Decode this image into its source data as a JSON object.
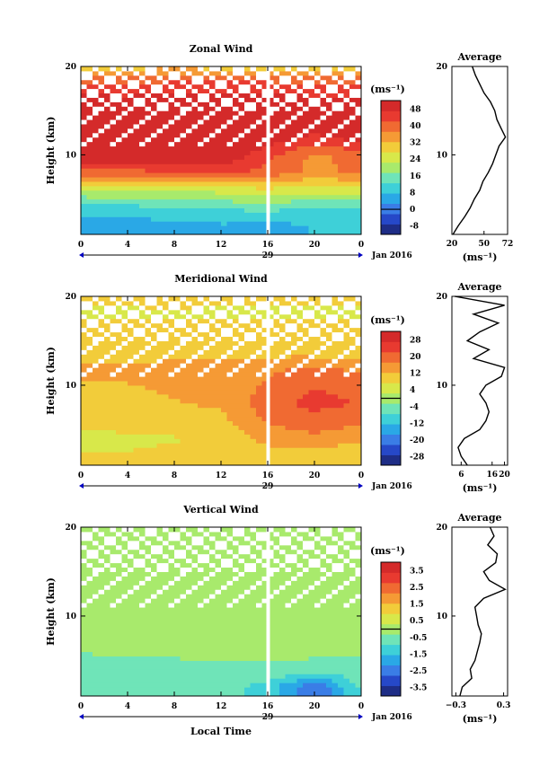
{
  "chart_data": [
    {
      "type": "heatmap",
      "title": "Zonal Wind",
      "ylabel": "Height (km)",
      "xlabel": "",
      "xlim": [
        0,
        24
      ],
      "ylim": [
        1,
        20
      ],
      "x_ticks": [
        "0",
        "4",
        "8",
        "12",
        "16",
        "20",
        "0"
      ],
      "y_ticks": [
        "10",
        "20"
      ],
      "date_axis": {
        "day_label": "29",
        "month_label": "Jan 2016"
      },
      "colorbar": {
        "unit_label": "(ms⁻¹)",
        "ticks": [
          "48",
          "40",
          "32",
          "24",
          "16",
          "8",
          "0",
          "-8"
        ],
        "range": [
          -12,
          52
        ],
        "colors": [
          "#1e2d86",
          "#2648c8",
          "#3a7de6",
          "#2aa8e6",
          "#3ed0d8",
          "#6fe4b8",
          "#a8ea6c",
          "#d8e84a",
          "#f2cc3a",
          "#f59a35",
          "#f06a32",
          "#e83a30",
          "#d42a2a"
        ]
      },
      "field": {
        "description": "Strong westerly jet (>48 m/s) between about 8 and 16 km, weak winds (0-16 m/s) near 1-4 km; data gaps (white) above ~12 km and a missing column near 16 LT.",
        "time_lt": [
          0,
          4,
          8,
          12,
          16,
          20,
          24
        ],
        "height_km": [
          2,
          4,
          6,
          8,
          10,
          12,
          14,
          16,
          18,
          20
        ],
        "values_ms": [
          [
            4,
            5,
            6,
            7,
            6,
            8,
            9
          ],
          [
            10,
            11,
            12,
            13,
            14,
            12,
            13
          ],
          [
            22,
            22,
            23,
            24,
            26,
            24,
            25
          ],
          [
            40,
            40,
            42,
            44,
            40,
            36,
            38
          ],
          [
            52,
            52,
            52,
            52,
            44,
            36,
            40
          ],
          [
            52,
            52,
            52,
            52,
            50,
            46,
            50
          ],
          [
            52,
            52,
            52,
            52,
            52,
            52,
            52
          ],
          [
            50,
            50,
            50,
            50,
            50,
            50,
            50
          ],
          [
            44,
            42,
            44,
            44,
            44,
            42,
            42
          ],
          [
            30,
            30,
            32,
            30,
            30,
            30,
            30
          ]
        ],
        "missing_time_lt": [
          16
        ]
      },
      "profile": {
        "title": "Average",
        "xlabel": "(ms⁻¹)",
        "x_ticks": [
          "20",
          "50",
          "72"
        ],
        "xlim": [
          20,
          72
        ],
        "height_km": [
          1,
          2,
          3,
          4,
          5,
          6,
          7,
          8,
          9,
          10,
          11,
          12,
          13,
          14,
          15,
          16,
          17,
          18,
          19,
          20
        ],
        "values_ms": [
          21,
          26,
          32,
          37,
          41,
          46,
          49,
          54,
          58,
          61,
          64,
          70,
          66,
          62,
          60,
          56,
          50,
          46,
          42,
          39
        ]
      }
    },
    {
      "type": "heatmap",
      "title": "Meridional Wind",
      "ylabel": "Height (km)",
      "xlabel": "",
      "xlim": [
        0,
        24
      ],
      "ylim": [
        1,
        20
      ],
      "x_ticks": [
        "0",
        "4",
        "8",
        "12",
        "16",
        "20",
        "0"
      ],
      "y_ticks": [
        "10",
        "20"
      ],
      "date_axis": {
        "day_label": "29",
        "month_label": "Jan 2016"
      },
      "colorbar": {
        "unit_label": "(ms⁻¹)",
        "ticks": [
          "28",
          "20",
          "12",
          "4",
          "-4",
          "-12",
          "-20",
          "-28"
        ],
        "range": [
          -32,
          32
        ],
        "colors": [
          "#1e2d86",
          "#2648c8",
          "#3a7de6",
          "#2aa8e6",
          "#3ed0d8",
          "#6fe4b8",
          "#a8ea6c",
          "#d8e84a",
          "#f2cc3a",
          "#f59a35",
          "#f06a32",
          "#e83a30",
          "#d42a2a"
        ]
      },
      "field": {
        "description": "Mostly weak southerly (5-15 m/s) flow; stronger values (20-28 m/s) after 16 LT between 5 and 12 km; data gaps above ~12 km.",
        "time_lt": [
          0,
          4,
          8,
          12,
          16,
          20,
          24
        ],
        "height_km": [
          2,
          4,
          6,
          8,
          10,
          12,
          14,
          16,
          18,
          20
        ],
        "values_ms": [
          [
            8,
            8,
            9,
            9,
            10,
            8,
            8
          ],
          [
            6,
            6,
            7,
            8,
            14,
            16,
            14
          ],
          [
            9,
            10,
            10,
            11,
            18,
            20,
            18
          ],
          [
            10,
            11,
            12,
            13,
            20,
            24,
            22
          ],
          [
            12,
            12,
            13,
            14,
            18,
            22,
            20
          ],
          [
            14,
            14,
            15,
            16,
            16,
            18,
            16
          ],
          [
            8,
            9,
            8,
            9,
            10,
            9,
            8
          ],
          [
            10,
            10,
            10,
            10,
            10,
            10,
            10
          ],
          [
            6,
            6,
            7,
            6,
            6,
            6,
            6
          ],
          [
            9,
            9,
            9,
            9,
            9,
            9,
            9
          ]
        ],
        "missing_time_lt": [
          16
        ]
      },
      "profile": {
        "title": "Average",
        "xlabel": "(ms⁻¹)",
        "x_ticks": [
          "6",
          "16",
          "20"
        ],
        "xlim": [
          3,
          21
        ],
        "height_km": [
          1,
          2,
          3,
          4,
          5,
          6,
          7,
          8,
          9,
          10,
          11,
          12,
          13,
          14,
          15,
          16,
          17,
          18,
          19,
          20
        ],
        "values_ms": [
          8,
          6,
          5,
          7,
          12,
          14,
          15,
          14,
          12,
          14,
          19,
          20,
          10,
          15,
          8,
          12,
          18,
          10,
          20,
          4
        ]
      }
    },
    {
      "type": "heatmap",
      "title": "Vertical Wind",
      "ylabel": "Height (km)",
      "xlabel": "Local Time",
      "xlim": [
        0,
        24
      ],
      "ylim": [
        1,
        20
      ],
      "x_ticks": [
        "0",
        "4",
        "8",
        "12",
        "16",
        "20",
        "0"
      ],
      "y_ticks": [
        "10",
        "20"
      ],
      "date_axis": {
        "day_label": "29",
        "month_label": "Jan 2016"
      },
      "colorbar": {
        "unit_label": "(ms⁻¹)",
        "ticks": [
          "3.5",
          "2.5",
          "1.5",
          "0.5",
          "-0.5",
          "-1.5",
          "-2.5",
          "-3.5"
        ],
        "range": [
          -4,
          4
        ],
        "colors": [
          "#1e2d86",
          "#2648c8",
          "#3a7de6",
          "#2aa8e6",
          "#3ed0d8",
          "#6fe4b8",
          "#a8ea6c",
          "#d8e84a",
          "#f2cc3a",
          "#f59a35",
          "#f06a32",
          "#e83a30",
          "#d42a2a"
        ]
      },
      "field": {
        "description": "Near-zero vertical velocity (-0.5 to 0.5 m/s) almost everywhere with weak downdrafts below 5 km and scattered data gaps above ~10 km.",
        "time_lt": [
          0,
          4,
          8,
          12,
          16,
          20,
          24
        ],
        "height_km": [
          2,
          4,
          6,
          8,
          10,
          12,
          14,
          16,
          18,
          20
        ],
        "values_ms": [
          [
            -0.8,
            -0.7,
            -0.6,
            -0.6,
            -1.2,
            -2.8,
            -0.8
          ],
          [
            -0.6,
            -0.5,
            -0.5,
            -0.4,
            -0.4,
            -0.5,
            -0.5
          ],
          [
            -0.3,
            -0.2,
            -0.2,
            -0.2,
            -0.2,
            -0.2,
            -0.2
          ],
          [
            -0.1,
            -0.1,
            -0.1,
            -0.1,
            -0.1,
            -0.1,
            -0.1
          ],
          [
            0.1,
            0.0,
            0.1,
            0.0,
            0.1,
            0.0,
            0.1
          ],
          [
            0.3,
            0.1,
            0.1,
            0.1,
            0.2,
            0.1,
            0.1
          ],
          [
            0.0,
            0.1,
            0.0,
            0.1,
            0.0,
            0.1,
            0.0
          ],
          [
            0.1,
            0.0,
            0.1,
            0.0,
            0.1,
            0.0,
            0.1
          ],
          [
            0.0,
            0.1,
            0.0,
            0.1,
            0.0,
            0.1,
            0.0
          ],
          [
            0.1,
            0.1,
            0.1,
            0.1,
            0.1,
            0.1,
            0.1
          ]
        ],
        "missing_time_lt": [
          16
        ]
      },
      "profile": {
        "title": "Average",
        "xlabel": "(ms⁻¹)",
        "x_ticks": [
          "−0.3",
          "0.3"
        ],
        "xlim": [
          -0.35,
          0.35
        ],
        "height_km": [
          1,
          2,
          3,
          4,
          5,
          6,
          7,
          8,
          9,
          10,
          11,
          12,
          13,
          14,
          15,
          16,
          17,
          18,
          19,
          20
        ],
        "values_ms": [
          -0.25,
          -0.22,
          -0.1,
          -0.12,
          -0.06,
          -0.03,
          0.0,
          0.02,
          -0.02,
          -0.04,
          -0.06,
          0.05,
          0.32,
          0.12,
          0.05,
          0.2,
          0.22,
          0.1,
          0.18,
          0.13
        ]
      }
    }
  ]
}
